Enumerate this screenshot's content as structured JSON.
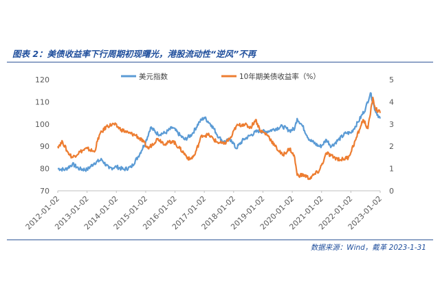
{
  "figure_title": "图表 2：美债收益率下行周期初现曙光，港股流动性“逆风”不再",
  "source_note": "数据来源：Wind，戴革 2023-1-31",
  "colors": {
    "usd_index": "#5b9bd5",
    "yield_10y": "#ed7d31",
    "axis_text": "#595959",
    "rule": "#2f5597",
    "title": "#1f4e9c"
  },
  "chart_data": {
    "type": "line",
    "title": "",
    "xlabel": "",
    "ylabel": "",
    "legend_position": "top",
    "grid": false,
    "x_ticks": [
      "2012-01-02",
      "2013-01-02",
      "2014-01-02",
      "2015-01-02",
      "2016-01-02",
      "2017-01-02",
      "2018-01-02",
      "2019-01-02",
      "2020-01-02",
      "2021-01-02",
      "2022-01-02",
      "2023-01-02"
    ],
    "y_left": {
      "ticks": [
        "70",
        "80",
        "90",
        "100",
        "110",
        "120"
      ],
      "range": [
        70,
        120
      ]
    },
    "y_right": {
      "ticks": [
        "0",
        "1",
        "2",
        "3",
        "4",
        "5"
      ],
      "range": [
        0,
        5
      ]
    },
    "series": [
      {
        "name": "美元指数",
        "axis": "left",
        "points": [
          [
            "2012-01",
            80
          ],
          [
            "2012-04",
            79.5
          ],
          [
            "2012-07",
            82
          ],
          [
            "2012-10",
            79.8
          ],
          [
            "2013-01",
            79.5
          ],
          [
            "2013-04",
            82.5
          ],
          [
            "2013-07",
            84
          ],
          [
            "2013-10",
            80
          ],
          [
            "2014-01",
            80.8
          ],
          [
            "2014-04",
            79.6
          ],
          [
            "2014-07",
            80.6
          ],
          [
            "2014-10",
            85.5
          ],
          [
            "2015-01",
            92
          ],
          [
            "2015-03",
            98.5
          ],
          [
            "2015-06",
            95.5
          ],
          [
            "2015-09",
            96
          ],
          [
            "2015-12",
            98.5
          ],
          [
            "2016-03",
            95
          ],
          [
            "2016-05",
            93
          ],
          [
            "2016-08",
            95.5
          ],
          [
            "2016-11",
            101
          ],
          [
            "2017-01",
            103
          ],
          [
            "2017-04",
            99.5
          ],
          [
            "2017-07",
            94
          ],
          [
            "2017-09",
            92
          ],
          [
            "2017-12",
            93
          ],
          [
            "2018-02",
            89
          ],
          [
            "2018-05",
            93
          ],
          [
            "2018-08",
            95
          ],
          [
            "2018-11",
            97
          ],
          [
            "2019-02",
            96.5
          ],
          [
            "2019-05",
            97.5
          ],
          [
            "2019-09",
            99
          ],
          [
            "2019-12",
            97
          ],
          [
            "2020-02",
            98
          ],
          [
            "2020-03",
            102.5
          ],
          [
            "2020-05",
            99.5
          ],
          [
            "2020-08",
            93
          ],
          [
            "2020-12",
            90
          ],
          [
            "2021-01",
            90.2
          ],
          [
            "2021-03",
            93
          ],
          [
            "2021-05",
            90
          ],
          [
            "2021-08",
            93
          ],
          [
            "2021-11",
            96
          ],
          [
            "2022-01",
            96
          ],
          [
            "2022-04",
            101
          ],
          [
            "2022-07",
            107
          ],
          [
            "2022-09",
            114
          ],
          [
            "2022-11",
            106
          ],
          [
            "2023-01",
            102.5
          ]
        ]
      },
      {
        "name": "10年期美债收益率（%）",
        "axis": "right",
        "points": [
          [
            "2012-01",
            2.0
          ],
          [
            "2012-03",
            2.2
          ],
          [
            "2012-05",
            1.75
          ],
          [
            "2012-07",
            1.5
          ],
          [
            "2012-10",
            1.75
          ],
          [
            "2013-01",
            1.9
          ],
          [
            "2013-04",
            1.75
          ],
          [
            "2013-06",
            2.5
          ],
          [
            "2013-09",
            2.9
          ],
          [
            "2013-12",
            3.0
          ],
          [
            "2014-03",
            2.75
          ],
          [
            "2014-06",
            2.6
          ],
          [
            "2014-09",
            2.5
          ],
          [
            "2014-12",
            2.2
          ],
          [
            "2015-02",
            1.9
          ],
          [
            "2015-06",
            2.35
          ],
          [
            "2015-09",
            2.1
          ],
          [
            "2015-12",
            2.25
          ],
          [
            "2016-03",
            1.9
          ],
          [
            "2016-07",
            1.4
          ],
          [
            "2016-09",
            1.6
          ],
          [
            "2016-12",
            2.5
          ],
          [
            "2017-03",
            2.5
          ],
          [
            "2017-06",
            2.2
          ],
          [
            "2017-09",
            2.1
          ],
          [
            "2017-12",
            2.4
          ],
          [
            "2018-02",
            2.9
          ],
          [
            "2018-05",
            3.0
          ],
          [
            "2018-08",
            2.85
          ],
          [
            "2018-10",
            3.2
          ],
          [
            "2018-12",
            2.7
          ],
          [
            "2019-03",
            2.5
          ],
          [
            "2019-06",
            2.0
          ],
          [
            "2019-09",
            1.6
          ],
          [
            "2019-12",
            1.9
          ],
          [
            "2020-02",
            1.5
          ],
          [
            "2020-03",
            0.7
          ],
          [
            "2020-06",
            0.7
          ],
          [
            "2020-08",
            0.55
          ],
          [
            "2020-12",
            0.9
          ],
          [
            "2021-02",
            1.4
          ],
          [
            "2021-03",
            1.7
          ],
          [
            "2021-06",
            1.5
          ],
          [
            "2021-09",
            1.4
          ],
          [
            "2021-12",
            1.5
          ],
          [
            "2022-03",
            2.3
          ],
          [
            "2022-05",
            2.9
          ],
          [
            "2022-06",
            3.2
          ],
          [
            "2022-08",
            2.8
          ],
          [
            "2022-10",
            4.2
          ],
          [
            "2022-11",
            3.7
          ],
          [
            "2023-01",
            3.5
          ]
        ]
      }
    ]
  }
}
